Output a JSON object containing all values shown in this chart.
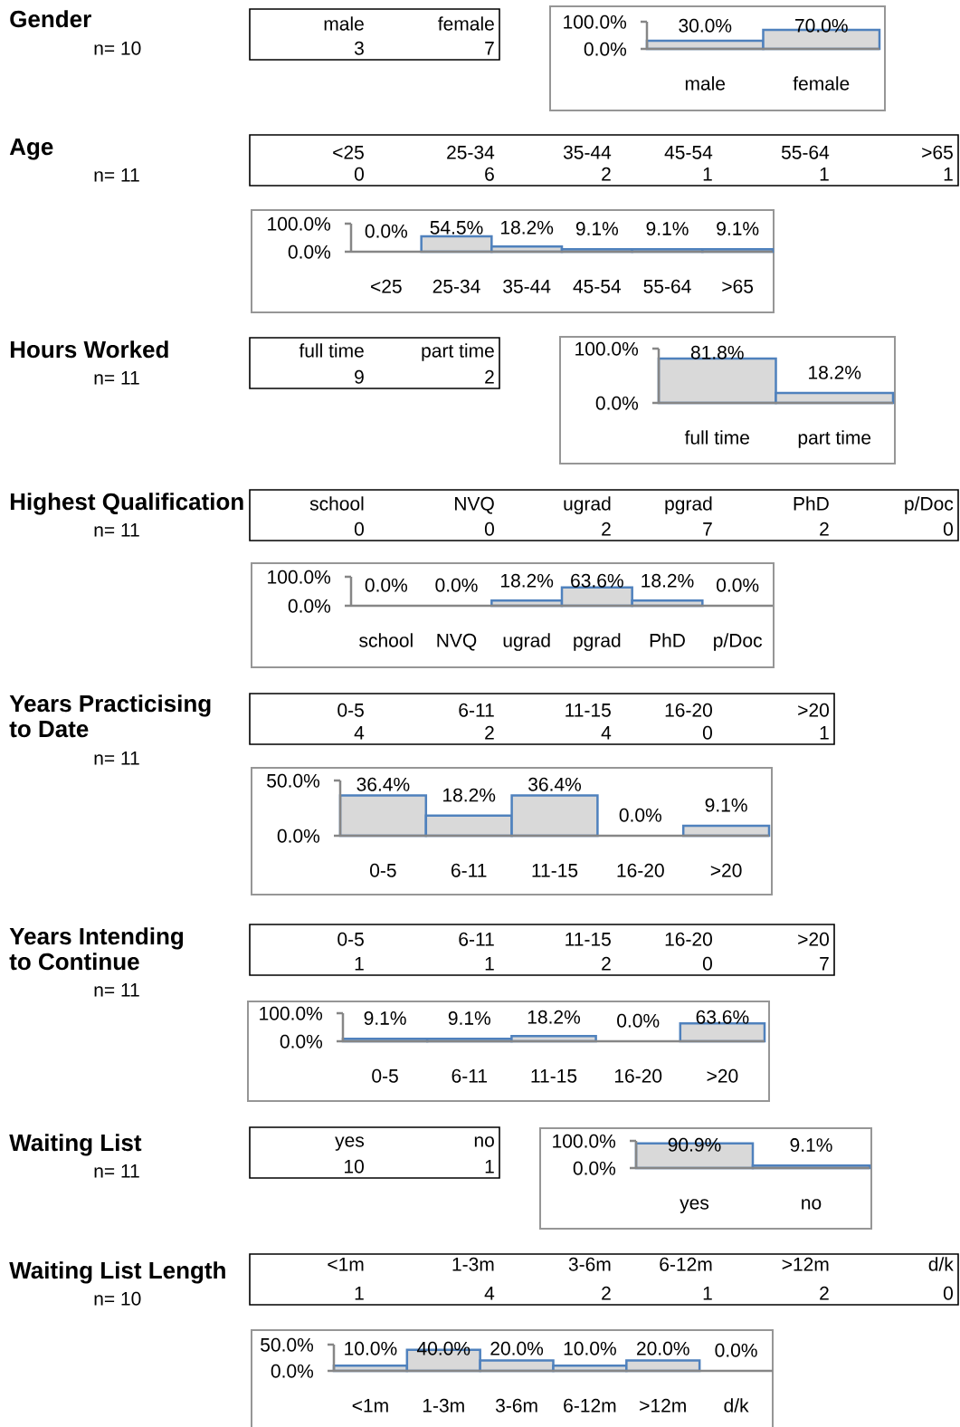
{
  "chart_data": [
    {
      "type": "other",
      "title": "Gender",
      "subtitle": "n= 10",
      "categories": [
        "male",
        "female"
      ],
      "values": [
        3,
        7
      ],
      "value_labels": [
        "3",
        "7"
      ]
    },
    {
      "type": "bar",
      "categories": [
        "male",
        "female"
      ],
      "values": [
        30,
        70
      ],
      "value_labels": [
        "30.0%",
        "70.0%"
      ],
      "color": "#d9d9d9",
      "ylim": [
        0,
        100
      ],
      "yticks": [
        {
          "value": 0,
          "label": "0.0%"
        },
        {
          "value": 100,
          "label": "100.0%"
        }
      ]
    },
    {
      "type": "other",
      "title": "Age",
      "subtitle": "n= 11",
      "categories": [
        "<25",
        "25-34",
        "35-44",
        "45-54",
        "55-64",
        ">65"
      ],
      "values": [
        0,
        6,
        2,
        1,
        1,
        1
      ],
      "value_labels": [
        "0",
        "6",
        "2",
        "1",
        "1",
        "1"
      ]
    },
    {
      "type": "bar",
      "categories": [
        "<25",
        "25-34",
        "35-44",
        "45-54",
        "55-64",
        ">65"
      ],
      "values": [
        0,
        54.5,
        18.2,
        9.1,
        9.1,
        9.1
      ],
      "value_labels": [
        "0.0%",
        "54.5%",
        "18.2%",
        "9.1%",
        "9.1%",
        "9.1%"
      ],
      "color": "#d9d9d9",
      "ylim": [
        0,
        100
      ],
      "yticks": [
        {
          "value": 0,
          "label": "0.0%"
        },
        {
          "value": 100,
          "label": "100.0%"
        }
      ]
    },
    {
      "type": "other",
      "title": "Hours Worked",
      "subtitle": "n= 11",
      "categories": [
        "full time",
        "part time"
      ],
      "values": [
        9,
        2
      ],
      "value_labels": [
        "9",
        "2"
      ]
    },
    {
      "type": "bar",
      "categories": [
        "full time",
        "part time"
      ],
      "values": [
        81.8,
        18.2
      ],
      "value_labels": [
        "81.8%",
        "18.2%"
      ],
      "color": "#d9d9d9",
      "ylim": [
        0,
        100
      ],
      "yticks": [
        {
          "value": 0,
          "label": "0.0%"
        },
        {
          "value": 100,
          "label": "100.0%"
        }
      ]
    },
    {
      "type": "other",
      "title": "Highest Qualification",
      "subtitle": "n= 11",
      "categories": [
        "school",
        "NVQ",
        "ugrad",
        "pgrad",
        "PhD",
        "p/Doc"
      ],
      "values": [
        0,
        0,
        2,
        7,
        2,
        0
      ],
      "value_labels": [
        "0",
        "0",
        "2",
        "7",
        "2",
        "0"
      ]
    },
    {
      "type": "bar",
      "categories": [
        "school",
        "NVQ",
        "ugrad",
        "pgrad",
        "PhD",
        "p/Doc"
      ],
      "values": [
        0,
        0,
        18.2,
        63.6,
        18.2,
        0
      ],
      "value_labels": [
        "0.0%",
        "0.0%",
        "18.2%",
        "63.6%",
        "18.2%",
        "0.0%"
      ],
      "color": "#d9d9d9",
      "ylim": [
        0,
        100
      ],
      "yticks": [
        {
          "value": 0,
          "label": "0.0%"
        },
        {
          "value": 100,
          "label": "100.0%"
        }
      ]
    },
    {
      "type": "other",
      "title": "Years Practicising to Date",
      "subtitle": "n= 11",
      "categories": [
        "0-5",
        "6-11",
        "11-15",
        "16-20",
        ">20"
      ],
      "values": [
        4,
        2,
        4,
        0,
        1
      ],
      "value_labels": [
        "4",
        "2",
        "4",
        "0",
        "1"
      ]
    },
    {
      "type": "bar",
      "categories": [
        "0-5",
        "6-11",
        "11-15",
        "16-20",
        ">20"
      ],
      "values": [
        36.4,
        18.2,
        36.4,
        0,
        9.1
      ],
      "value_labels": [
        "36.4%",
        "18.2%",
        "36.4%",
        "0.0%",
        "9.1%"
      ],
      "color": "#d9d9d9",
      "ylim": [
        0,
        50
      ],
      "yticks": [
        {
          "value": 0,
          "label": "0.0%"
        },
        {
          "value": 50,
          "label": "50.0%"
        }
      ]
    },
    {
      "type": "other",
      "title": "Years Intending to Continue",
      "subtitle": "n= 11",
      "categories": [
        "0-5",
        "6-11",
        "11-15",
        "16-20",
        ">20"
      ],
      "values": [
        1,
        1,
        2,
        0,
        7
      ],
      "value_labels": [
        "1",
        "1",
        "2",
        "0",
        "7"
      ]
    },
    {
      "type": "bar",
      "categories": [
        "0-5",
        "6-11",
        "11-15",
        "16-20",
        ">20"
      ],
      "values": [
        9.1,
        9.1,
        18.2,
        0,
        63.6
      ],
      "value_labels": [
        "9.1%",
        "9.1%",
        "18.2%",
        "0.0%",
        "63.6%"
      ],
      "color": "#d9d9d9",
      "ylim": [
        0,
        100
      ],
      "yticks": [
        {
          "value": 0,
          "label": "0.0%"
        },
        {
          "value": 100,
          "label": "100.0%"
        }
      ]
    },
    {
      "type": "other",
      "title": "Waiting List",
      "subtitle": "n= 11",
      "categories": [
        "yes",
        "no"
      ],
      "values": [
        10,
        1
      ],
      "value_labels": [
        "10",
        "1"
      ]
    },
    {
      "type": "bar",
      "categories": [
        "yes",
        "no"
      ],
      "values": [
        90.9,
        9.1
      ],
      "value_labels": [
        "90.9%",
        "9.1%"
      ],
      "color": "#d9d9d9",
      "ylim": [
        0,
        100
      ],
      "yticks": [
        {
          "value": 0,
          "label": "0.0%"
        },
        {
          "value": 100,
          "label": "100.0%"
        }
      ]
    },
    {
      "type": "other",
      "title": "Waiting List Length",
      "subtitle": "n= 10",
      "categories": [
        "<1m",
        "1-3m",
        "3-6m",
        "6-12m",
        ">12m",
        "d/k"
      ],
      "values": [
        1,
        4,
        2,
        1,
        2,
        0
      ],
      "value_labels": [
        "1",
        "4",
        "2",
        "1",
        "2",
        "0"
      ]
    },
    {
      "type": "bar",
      "categories": [
        "<1m",
        "1-3m",
        "3-6m",
        "6-12m",
        ">12m",
        "d/k"
      ],
      "values": [
        10,
        40,
        20,
        10,
        20,
        0
      ],
      "value_labels": [
        "10.0%",
        "40.0%",
        "20.0%",
        "10.0%",
        "20.0%",
        "0.0%"
      ],
      "color": "#d9d9d9",
      "ylim": [
        0,
        50
      ],
      "yticks": [
        {
          "value": 0,
          "label": "0.0%"
        },
        {
          "value": 50,
          "label": "50.0%"
        }
      ]
    }
  ]
}
